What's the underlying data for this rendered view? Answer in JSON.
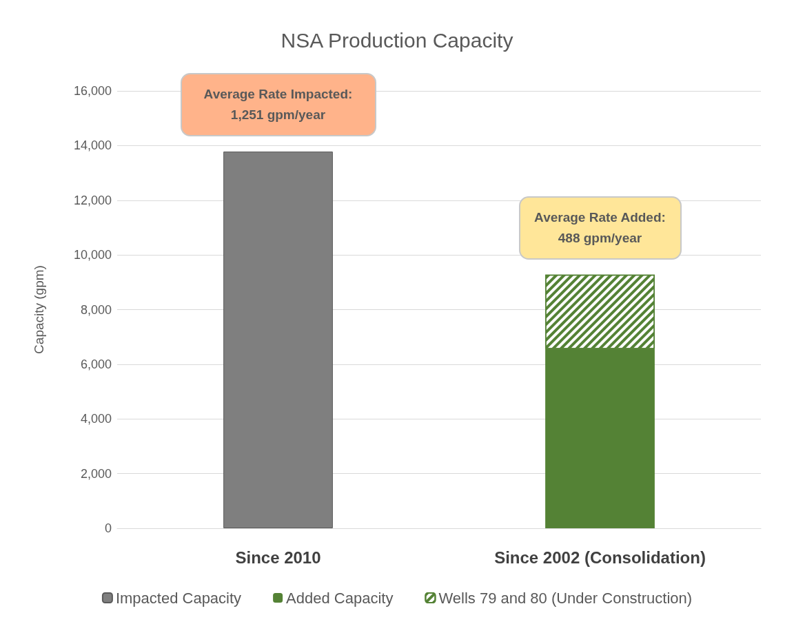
{
  "chart_data": {
    "type": "bar",
    "title": "NSA Production Capacity",
    "ylabel": "Capacity (gpm)",
    "categories": [
      "Since 2010",
      "Since 2002 (Consolidation)"
    ],
    "stacked": true,
    "series": [
      {
        "name": "Impacted Capacity",
        "color": "#7f7f7f",
        "values": [
          13780,
          null
        ]
      },
      {
        "name": "Added Capacity",
        "color": "#548235",
        "values": [
          null,
          6560
        ]
      },
      {
        "name": "Wells 79 and 80 (Under Construction)",
        "color": "#548235",
        "values": [
          null,
          2720
        ]
      }
    ],
    "ylim": [
      0,
      16000
    ],
    "yticks": [
      0,
      {
        "value": 2000,
        "label": "2,000"
      },
      {
        "value": 4000,
        "label": "4,000"
      },
      {
        "value": 6000,
        "label": "6,000"
      },
      {
        "value": 8000,
        "label": "8,000"
      },
      {
        "value": 10000,
        "label": "10,000"
      },
      {
        "value": 12000,
        "label": "12,000"
      },
      {
        "value": 14000,
        "label": "14,000"
      },
      {
        "value": 16000,
        "label": "16,000"
      }
    ],
    "grid": "y",
    "legend": "bottom",
    "annotations": [
      "Average Rate Impacted:\n1,251 gpm/year",
      "Average Rate Added:\n488 gpm/year"
    ]
  }
}
